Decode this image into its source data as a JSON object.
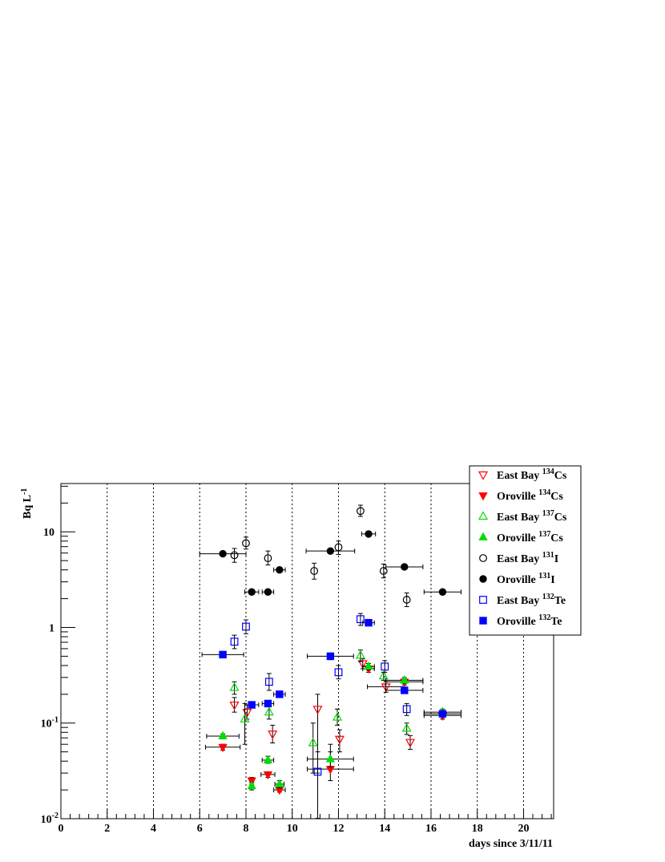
{
  "chart_data": {
    "type": "scatter",
    "xlabel": "days since 3/11/11",
    "ylabel": "Bq L",
    "ylabel_sup": "-1",
    "xlim": [
      0,
      21.3
    ],
    "ylim": [
      0.01,
      32
    ],
    "yscale": "log",
    "grid": "vertical dotted",
    "legend_position": "top-right",
    "x_ticks": [
      0,
      2,
      4,
      6,
      8,
      10,
      12,
      14,
      16,
      18,
      20
    ],
    "y_ticks": [
      {
        "value": 0.01,
        "label": "10",
        "sup": "-2"
      },
      {
        "value": 0.1,
        "label": "10",
        "sup": "-1"
      },
      {
        "value": 1,
        "label": "1",
        "sup": ""
      },
      {
        "value": 10,
        "label": "10",
        "sup": ""
      }
    ],
    "series": [
      {
        "name": "East Bay",
        "isotope": "134",
        "element": "Cs",
        "color": "#ff0000",
        "marker": "triangle-down",
        "filled": false,
        "points": [
          {
            "x": 7.5,
            "y": 0.155,
            "xerr": 0,
            "ylo": 0.13,
            "yhi": 0.185
          },
          {
            "x": 8.05,
            "y": 0.13,
            "xerr": 0,
            "ylo": 0.11,
            "yhi": 0.155
          },
          {
            "x": 9.15,
            "y": 0.077,
            "xerr": 0,
            "ylo": 0.062,
            "yhi": 0.095
          },
          {
            "x": 11.1,
            "y": 0.14,
            "xerr": 0,
            "ylo": 0.03,
            "yhi": 0.2
          },
          {
            "x": 12.05,
            "y": 0.068,
            "xerr": 0,
            "ylo": 0.05,
            "yhi": 0.085
          },
          {
            "x": 13.05,
            "y": 0.42,
            "xerr": 0,
            "ylo": 0.37,
            "yhi": 0.47
          },
          {
            "x": 14.05,
            "y": 0.24,
            "xerr": 0.8,
            "ylo": 0.21,
            "yhi": 0.27
          },
          {
            "x": 15.1,
            "y": 0.063,
            "xerr": 0,
            "ylo": 0.053,
            "yhi": 0.074
          },
          {
            "x": 16.5,
            "y": 0.12,
            "xerr": 0.8,
            "ylo": 0.11,
            "yhi": 0.13
          }
        ]
      },
      {
        "name": "Oroville",
        "isotope": "134",
        "element": "Cs",
        "color": "#ff0000",
        "marker": "triangle-down",
        "filled": true,
        "points": [
          {
            "x": 7.0,
            "y": 0.056,
            "xerr": 0.75,
            "ylo": 0.052,
            "yhi": 0.06
          },
          {
            "x": 8.25,
            "y": 0.025,
            "xerr": 0,
            "ylo": 0.023,
            "yhi": 0.027
          },
          {
            "x": 8.95,
            "y": 0.029,
            "xerr": 0.3,
            "ylo": 0.027,
            "yhi": 0.031
          },
          {
            "x": 9.45,
            "y": 0.02,
            "xerr": 0.25,
            "ylo": 0.019,
            "yhi": 0.021
          },
          {
            "x": 11.65,
            "y": 0.033,
            "xerr": 1.0,
            "ylo": 0.025,
            "yhi": 0.06
          },
          {
            "x": 13.3,
            "y": 0.37,
            "xerr": 0.25,
            "ylo": 0.34,
            "yhi": 0.4
          },
          {
            "x": 14.85,
            "y": 0.27,
            "xerr": 0.8,
            "ylo": 0.25,
            "yhi": 0.29
          }
        ]
      },
      {
        "name": "East Bay",
        "isotope": "137",
        "element": "Cs",
        "color": "#00dd00",
        "marker": "triangle-up",
        "filled": false,
        "points": [
          {
            "x": 7.5,
            "y": 0.235,
            "xerr": 0,
            "ylo": 0.2,
            "yhi": 0.27
          },
          {
            "x": 7.95,
            "y": 0.11,
            "xerr": 0,
            "ylo": 0.06,
            "yhi": 0.16
          },
          {
            "x": 9.0,
            "y": 0.13,
            "xerr": 0,
            "ylo": 0.11,
            "yhi": 0.15
          },
          {
            "x": 10.9,
            "y": 0.062,
            "xerr": 0,
            "ylo": 0.03,
            "yhi": 0.1
          },
          {
            "x": 11.95,
            "y": 0.115,
            "xerr": 0,
            "ylo": 0.095,
            "yhi": 0.14
          },
          {
            "x": 12.95,
            "y": 0.51,
            "xerr": 0,
            "ylo": 0.44,
            "yhi": 0.58
          },
          {
            "x": 13.95,
            "y": 0.31,
            "xerr": 0,
            "ylo": 0.28,
            "yhi": 0.34
          },
          {
            "x": 14.95,
            "y": 0.088,
            "xerr": 0,
            "ylo": 0.076,
            "yhi": 0.1
          },
          {
            "x": 16.5,
            "y": 0.13,
            "xerr": 0.8,
            "ylo": 0.12,
            "yhi": 0.14
          }
        ]
      },
      {
        "name": "Oroville",
        "isotope": "137",
        "element": "Cs",
        "color": "#00dd00",
        "marker": "triangle-up",
        "filled": true,
        "points": [
          {
            "x": 7.0,
            "y": 0.073,
            "xerr": 0.7,
            "ylo": 0.069,
            "yhi": 0.077
          },
          {
            "x": 8.25,
            "y": 0.022,
            "xerr": 0,
            "ylo": 0.02,
            "yhi": 0.024
          },
          {
            "x": 8.95,
            "y": 0.041,
            "xerr": 0.25,
            "ylo": 0.038,
            "yhi": 0.045
          },
          {
            "x": 9.45,
            "y": 0.023,
            "xerr": 0.2,
            "ylo": 0.021,
            "yhi": 0.025
          },
          {
            "x": 11.65,
            "y": 0.042,
            "xerr": 1.0,
            "ylo": 0.035,
            "yhi": 0.05
          },
          {
            "x": 13.3,
            "y": 0.39,
            "xerr": 0.25,
            "ylo": 0.36,
            "yhi": 0.42
          },
          {
            "x": 14.85,
            "y": 0.28,
            "xerr": 0.8,
            "ylo": 0.26,
            "yhi": 0.3
          }
        ]
      },
      {
        "name": "East Bay",
        "isotope": "131",
        "element": "I",
        "color": "#000000",
        "marker": "circle",
        "filled": false,
        "points": [
          {
            "x": 7.5,
            "y": 5.7,
            "xerr": 0,
            "ylo": 4.8,
            "yhi": 6.7
          },
          {
            "x": 8.0,
            "y": 7.6,
            "xerr": 0,
            "ylo": 6.6,
            "yhi": 8.8
          },
          {
            "x": 8.95,
            "y": 5.3,
            "xerr": 0,
            "ylo": 4.5,
            "yhi": 6.3
          },
          {
            "x": 10.95,
            "y": 3.9,
            "xerr": 0,
            "ylo": 3.2,
            "yhi": 4.7
          },
          {
            "x": 12.0,
            "y": 6.9,
            "xerr": 0,
            "ylo": 5.8,
            "yhi": 8.0
          },
          {
            "x": 12.95,
            "y": 16.5,
            "xerr": 0,
            "ylo": 14.5,
            "yhi": 19.0
          },
          {
            "x": 13.95,
            "y": 3.9,
            "xerr": 0,
            "ylo": 3.3,
            "yhi": 4.6
          },
          {
            "x": 14.95,
            "y": 1.95,
            "xerr": 0,
            "ylo": 1.65,
            "yhi": 2.3
          }
        ]
      },
      {
        "name": "Oroville",
        "isotope": "131",
        "element": "I",
        "color": "#000000",
        "marker": "circle",
        "filled": true,
        "points": [
          {
            "x": 7.0,
            "y": 5.9,
            "xerr": 1.0,
            "ylo": 5.7,
            "yhi": 6.1
          },
          {
            "x": 8.25,
            "y": 2.35,
            "xerr": 0.3,
            "ylo": 2.25,
            "yhi": 2.45
          },
          {
            "x": 8.95,
            "y": 2.35,
            "xerr": 0.25,
            "ylo": 2.25,
            "yhi": 2.45
          },
          {
            "x": 9.45,
            "y": 4.0,
            "xerr": 0.25,
            "ylo": 3.85,
            "yhi": 4.15
          },
          {
            "x": 11.65,
            "y": 6.3,
            "xerr": 1.05,
            "ylo": 6.0,
            "yhi": 6.6
          },
          {
            "x": 13.3,
            "y": 9.5,
            "xerr": 0.3,
            "ylo": 9.2,
            "yhi": 9.8
          },
          {
            "x": 14.85,
            "y": 4.3,
            "xerr": 0.8,
            "ylo": 4.15,
            "yhi": 4.45
          },
          {
            "x": 16.5,
            "y": 2.35,
            "xerr": 0.8,
            "ylo": 2.25,
            "yhi": 2.45
          }
        ]
      },
      {
        "name": "East Bay",
        "isotope": "132",
        "element": "Te",
        "color": "#0000ff",
        "marker": "square",
        "filled": false,
        "points": [
          {
            "x": 7.5,
            "y": 0.71,
            "xerr": 0,
            "ylo": 0.6,
            "yhi": 0.83
          },
          {
            "x": 8.0,
            "y": 1.02,
            "xerr": 0,
            "ylo": 0.86,
            "yhi": 1.2
          },
          {
            "x": 9.0,
            "y": 0.27,
            "xerr": 0,
            "ylo": 0.22,
            "yhi": 0.33
          },
          {
            "x": 11.1,
            "y": 0.031,
            "xerr": 0,
            "ylo": 0.0101,
            "yhi": 0.05
          },
          {
            "x": 12.0,
            "y": 0.34,
            "xerr": 0,
            "ylo": 0.29,
            "yhi": 0.4
          },
          {
            "x": 12.95,
            "y": 1.22,
            "xerr": 0,
            "ylo": 1.05,
            "yhi": 1.4
          },
          {
            "x": 14.0,
            "y": 0.39,
            "xerr": 0,
            "ylo": 0.34,
            "yhi": 0.45
          },
          {
            "x": 14.95,
            "y": 0.14,
            "xerr": 0,
            "ylo": 0.12,
            "yhi": 0.16
          }
        ]
      },
      {
        "name": "Oroville",
        "isotope": "132",
        "element": "Te",
        "color": "#0000ff",
        "marker": "square",
        "filled": true,
        "points": [
          {
            "x": 7.0,
            "y": 0.52,
            "xerr": 0.9,
            "ylo": 0.5,
            "yhi": 0.54
          },
          {
            "x": 8.25,
            "y": 0.155,
            "xerr": 0.3,
            "ylo": 0.15,
            "yhi": 0.16
          },
          {
            "x": 8.95,
            "y": 0.16,
            "xerr": 0.25,
            "ylo": 0.155,
            "yhi": 0.165
          },
          {
            "x": 9.45,
            "y": 0.2,
            "xerr": 0.25,
            "ylo": 0.19,
            "yhi": 0.21
          },
          {
            "x": 11.65,
            "y": 0.5,
            "xerr": 1.0,
            "ylo": 0.46,
            "yhi": 0.54
          },
          {
            "x": 13.3,
            "y": 1.12,
            "xerr": 0.25,
            "ylo": 1.08,
            "yhi": 1.16
          },
          {
            "x": 14.85,
            "y": 0.22,
            "xerr": 0.8,
            "ylo": 0.21,
            "yhi": 0.23
          },
          {
            "x": 16.5,
            "y": 0.125,
            "xerr": 0.8,
            "ylo": 0.12,
            "yhi": 0.13
          }
        ]
      }
    ]
  }
}
